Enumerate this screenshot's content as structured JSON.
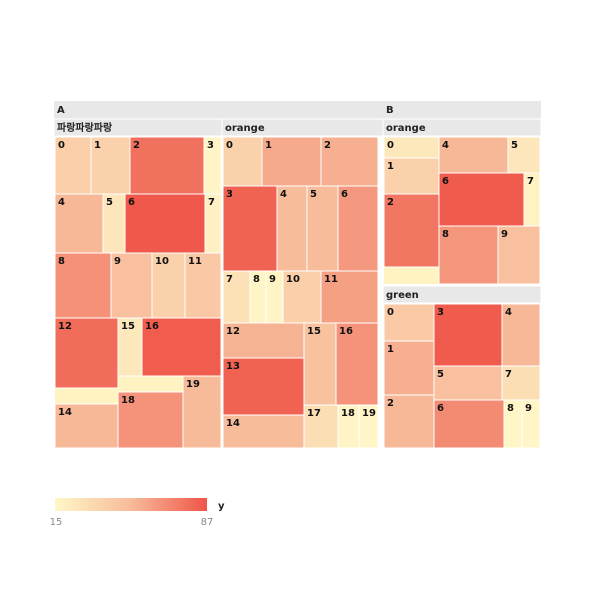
{
  "chart_data": {
    "type": "treemap",
    "title": "",
    "color_scale": {
      "field": "y",
      "min": 15,
      "max": 87,
      "colors": [
        "#fff7c7",
        "#f7bb9a",
        "#ef5548"
      ]
    },
    "legend": {
      "title": "y",
      "min_label": "15",
      "max_label": "87",
      "placement": "bottom-left"
    },
    "groups": [
      {
        "name": "A",
        "subgroups": [
          {
            "name": "파랑파랑파랑",
            "items": [
              {
                "label": "0",
                "y": 39
              },
              {
                "label": "1",
                "y": 38
              },
              {
                "label": "2",
                "y": 77
              },
              {
                "label": "3",
                "y": 17
              },
              {
                "label": "4",
                "y": 52
              },
              {
                "label": "5",
                "y": 25
              },
              {
                "label": "6",
                "y": 86
              },
              {
                "label": "7",
                "y": 19
              },
              {
                "label": "8",
                "y": 66
              },
              {
                "label": "9",
                "y": 48
              },
              {
                "label": "10",
                "y": 38
              },
              {
                "label": "11",
                "y": 43
              },
              {
                "label": "12",
                "y": 79
              },
              {
                "label": "15",
                "y": 24
              },
              {
                "label": "16",
                "y": 84
              },
              {
                "label": "14",
                "y": 52
              },
              {
                "label": "18",
                "y": 65
              },
              {
                "label": "19",
                "y": 51
              }
            ]
          },
          {
            "name": "orange",
            "items": [
              {
                "label": "0",
                "y": 38
              },
              {
                "label": "1",
                "y": 57
              },
              {
                "label": "2",
                "y": 55
              },
              {
                "label": "3",
                "y": 82
              },
              {
                "label": "4",
                "y": 50
              },
              {
                "label": "5",
                "y": 50
              },
              {
                "label": "6",
                "y": 63
              },
              {
                "label": "7",
                "y": 28
              },
              {
                "label": "8",
                "y": 17
              },
              {
                "label": "9",
                "y": 17
              },
              {
                "label": "10",
                "y": 39
              },
              {
                "label": "11",
                "y": 61
              },
              {
                "label": "12",
                "y": 54
              },
              {
                "label": "15",
                "y": 47
              },
              {
                "label": "16",
                "y": 65
              },
              {
                "label": "13",
                "y": 82
              },
              {
                "label": "14",
                "y": 50
              },
              {
                "label": "17",
                "y": 30
              },
              {
                "label": "18",
                "y": 17
              },
              {
                "label": "19",
                "y": 16
              }
            ]
          }
        ]
      },
      {
        "name": "B",
        "subgroups": [
          {
            "name": "orange",
            "items": [
              {
                "label": "0",
                "y": 24
              },
              {
                "label": "4",
                "y": 52
              },
              {
                "label": "5",
                "y": 25
              },
              {
                "label": "1",
                "y": 38
              },
              {
                "label": "6",
                "y": 85
              },
              {
                "label": "7",
                "y": 18
              },
              {
                "label": "2",
                "y": 75
              },
              {
                "label": "8",
                "y": 64
              },
              {
                "label": "9",
                "y": 48
              }
            ]
          },
          {
            "name": "green",
            "items": [
              {
                "label": "0",
                "y": 42
              },
              {
                "label": "3",
                "y": 85
              },
              {
                "label": "4",
                "y": 52
              },
              {
                "label": "1",
                "y": 55
              },
              {
                "label": "5",
                "y": 48
              },
              {
                "label": "7",
                "y": 30
              },
              {
                "label": "2",
                "y": 52
              },
              {
                "label": "6",
                "y": 68
              },
              {
                "label": "8",
                "y": 16
              },
              {
                "label": "9",
                "y": 16
              }
            ]
          }
        ]
      }
    ]
  }
}
